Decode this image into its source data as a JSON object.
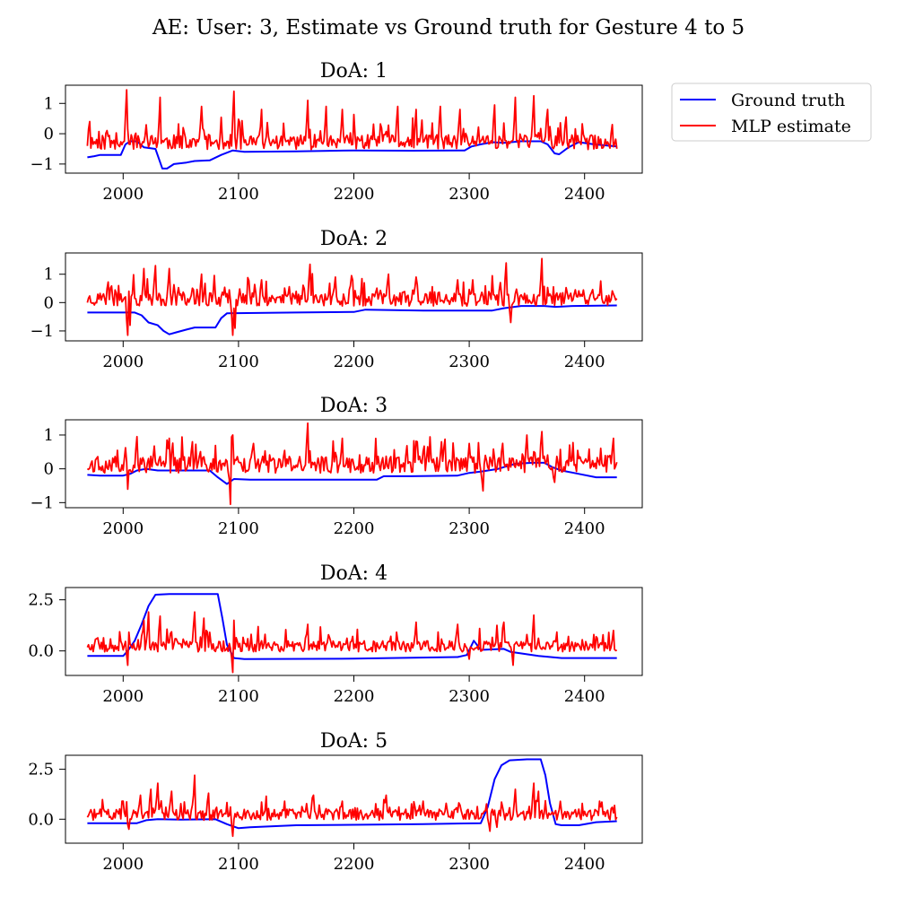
{
  "chart_data": {
    "type": "line",
    "title": "AE: User: 3, Estimate vs Ground truth for Gesture 4 to 5",
    "legend": {
      "placement": "upper-right-outside",
      "entries": [
        {
          "name": "Ground truth",
          "color": "#0000ff"
        },
        {
          "name": "MLP estimate",
          "color": "#ff0000"
        }
      ]
    },
    "xlim": [
      1950,
      2450
    ],
    "x_range": [
      1969,
      2428
    ],
    "xticks": [
      "2000",
      "2100",
      "2200",
      "2300",
      "2400"
    ],
    "grid": false,
    "subplots": [
      {
        "title": "DoA: 1",
        "ylim": [
          -1.3,
          1.6
        ],
        "yticks": [
          {
            "v": 1,
            "label": "1"
          },
          {
            "v": 0,
            "label": "0"
          },
          {
            "v": -1,
            "label": "−1"
          }
        ],
        "ground_truth": [
          [
            1969,
            -0.78
          ],
          [
            1975,
            -0.74
          ],
          [
            1980,
            -0.7
          ],
          [
            1998,
            -0.7
          ],
          [
            2002,
            -0.35
          ],
          [
            2006,
            -0.25
          ],
          [
            2012,
            -0.25
          ],
          [
            2018,
            -0.45
          ],
          [
            2028,
            -0.5
          ],
          [
            2034,
            -1.15
          ],
          [
            2038,
            -1.15
          ],
          [
            2044,
            -1.0
          ],
          [
            2055,
            -0.95
          ],
          [
            2062,
            -0.9
          ],
          [
            2075,
            -0.88
          ],
          [
            2085,
            -0.7
          ],
          [
            2095,
            -0.55
          ],
          [
            2105,
            -0.6
          ],
          [
            2150,
            -0.58
          ],
          [
            2200,
            -0.55
          ],
          [
            2250,
            -0.56
          ],
          [
            2296,
            -0.55
          ],
          [
            2302,
            -0.42
          ],
          [
            2310,
            -0.35
          ],
          [
            2320,
            -0.28
          ],
          [
            2330,
            -0.3
          ],
          [
            2345,
            -0.25
          ],
          [
            2362,
            -0.25
          ],
          [
            2368,
            -0.35
          ],
          [
            2374,
            -0.65
          ],
          [
            2378,
            -0.68
          ],
          [
            2386,
            -0.45
          ],
          [
            2395,
            -0.28
          ],
          [
            2408,
            -0.35
          ],
          [
            2428,
            -0.42
          ]
        ],
        "estimate": {
          "base": -0.3,
          "amp": 0.5,
          "peaks": [
            [
              2003,
              1.45
            ],
            [
              2012,
              1.05
            ],
            [
              2032,
              1.2
            ],
            [
              2068,
              0.9
            ],
            [
              2096,
              1.4
            ],
            [
              2101,
              1.25
            ],
            [
              2120,
              0.8
            ],
            [
              2160,
              1.1
            ],
            [
              2176,
              0.9
            ],
            [
              2190,
              0.8
            ],
            [
              2238,
              0.9
            ],
            [
              2254,
              0.8
            ],
            [
              2275,
              0.9
            ],
            [
              2292,
              0.8
            ],
            [
              2322,
              0.95
            ],
            [
              2340,
              1.2
            ],
            [
              2356,
              1.25
            ],
            [
              2368,
              0.8
            ],
            [
              2384,
              0.55
            ],
            [
              2424,
              0.3
            ]
          ],
          "dips": [
            [
              2012,
              -0.45
            ],
            [
              2102,
              -0.5
            ],
            [
              2300,
              -0.4
            ]
          ],
          "seed": 11
        }
      },
      {
        "title": "DoA: 2",
        "ylim": [
          -1.35,
          1.75
        ],
        "yticks": [
          {
            "v": 1,
            "label": "1"
          },
          {
            "v": 0,
            "label": "0"
          },
          {
            "v": -1,
            "label": "−1"
          }
        ],
        "ground_truth": [
          [
            1969,
            -0.35
          ],
          [
            2010,
            -0.35
          ],
          [
            2016,
            -0.45
          ],
          [
            2022,
            -0.7
          ],
          [
            2030,
            -0.8
          ],
          [
            2035,
            -1.0
          ],
          [
            2040,
            -1.12
          ],
          [
            2046,
            -1.05
          ],
          [
            2055,
            -0.95
          ],
          [
            2062,
            -0.88
          ],
          [
            2080,
            -0.88
          ],
          [
            2085,
            -0.55
          ],
          [
            2090,
            -0.38
          ],
          [
            2150,
            -0.35
          ],
          [
            2200,
            -0.33
          ],
          [
            2210,
            -0.25
          ],
          [
            2260,
            -0.28
          ],
          [
            2320,
            -0.28
          ],
          [
            2330,
            -0.2
          ],
          [
            2345,
            -0.12
          ],
          [
            2365,
            -0.12
          ],
          [
            2375,
            -0.15
          ],
          [
            2390,
            -0.12
          ],
          [
            2428,
            -0.1
          ]
        ],
        "estimate": {
          "base": 0.1,
          "amp": 0.5,
          "peaks": [
            [
              2005,
              1.6
            ],
            [
              2018,
              1.2
            ],
            [
              2028,
              1.3
            ],
            [
              2040,
              1.2
            ],
            [
              2068,
              1.0
            ],
            [
              2097,
              1.1
            ],
            [
              2120,
              0.8
            ],
            [
              2162,
              1.35
            ],
            [
              2184,
              0.9
            ],
            [
              2198,
              0.95
            ],
            [
              2230,
              1.0
            ],
            [
              2254,
              0.9
            ],
            [
              2290,
              0.8
            ],
            [
              2303,
              0.8
            ],
            [
              2332,
              1.4
            ],
            [
              2363,
              1.55
            ],
            [
              2394,
              0.2
            ],
            [
              2425,
              0.3
            ]
          ],
          "dips": [
            [
              2004,
              -1.15
            ],
            [
              2006,
              -0.8
            ],
            [
              2095,
              -1.15
            ],
            [
              2097,
              -0.9
            ],
            [
              2336,
              -0.7
            ]
          ],
          "seed": 23
        }
      },
      {
        "title": "DoA: 3",
        "ylim": [
          -1.15,
          1.45
        ],
        "yticks": [
          {
            "v": 1,
            "label": "1"
          },
          {
            "v": 0,
            "label": "0"
          },
          {
            "v": -1,
            "label": "−1"
          }
        ],
        "ground_truth": [
          [
            1969,
            -0.18
          ],
          [
            1980,
            -0.2
          ],
          [
            2000,
            -0.2
          ],
          [
            2006,
            -0.15
          ],
          [
            2012,
            -0.05
          ],
          [
            2020,
            0.0
          ],
          [
            2030,
            -0.05
          ],
          [
            2050,
            -0.05
          ],
          [
            2075,
            -0.05
          ],
          [
            2082,
            -0.25
          ],
          [
            2090,
            -0.45
          ],
          [
            2096,
            -0.3
          ],
          [
            2110,
            -0.32
          ],
          [
            2150,
            -0.32
          ],
          [
            2220,
            -0.32
          ],
          [
            2226,
            -0.22
          ],
          [
            2250,
            -0.22
          ],
          [
            2290,
            -0.2
          ],
          [
            2300,
            -0.12
          ],
          [
            2310,
            -0.08
          ],
          [
            2325,
            0.0
          ],
          [
            2340,
            0.15
          ],
          [
            2355,
            0.18
          ],
          [
            2365,
            0.18
          ],
          [
            2372,
            0.05
          ],
          [
            2380,
            -0.05
          ],
          [
            2395,
            -0.15
          ],
          [
            2410,
            -0.25
          ],
          [
            2428,
            -0.25
          ]
        ],
        "estimate": {
          "base": 0.1,
          "amp": 0.5,
          "peaks": [
            [
              2003,
              1.0
            ],
            [
              2012,
              0.95
            ],
            [
              2040,
              0.9
            ],
            [
              2060,
              0.8
            ],
            [
              2095,
              1.0
            ],
            [
              2113,
              0.75
            ],
            [
              2160,
              1.35
            ],
            [
              2190,
              0.9
            ],
            [
              2255,
              0.8
            ],
            [
              2276,
              0.8
            ],
            [
              2300,
              0.75
            ],
            [
              2350,
              1.0
            ],
            [
              2363,
              1.1
            ],
            [
              2425,
              0.9
            ]
          ],
          "dips": [
            [
              2004,
              -0.6
            ],
            [
              2093,
              -1.05
            ],
            [
              2312,
              -0.65
            ],
            [
              2374,
              -0.4
            ]
          ],
          "seed": 37
        }
      },
      {
        "title": "DoA: 4",
        "ylim": [
          -1.2,
          3.1
        ],
        "yticks": [
          {
            "v": 2.5,
            "label": "2.5"
          },
          {
            "v": 0,
            "label": "0.0"
          }
        ],
        "ground_truth": [
          [
            1969,
            -0.25
          ],
          [
            2000,
            -0.25
          ],
          [
            2004,
            0.0
          ],
          [
            2010,
            0.5
          ],
          [
            2016,
            1.3
          ],
          [
            2022,
            2.2
          ],
          [
            2028,
            2.75
          ],
          [
            2040,
            2.78
          ],
          [
            2082,
            2.78
          ],
          [
            2086,
            1.6
          ],
          [
            2090,
            0.3
          ],
          [
            2096,
            -0.35
          ],
          [
            2105,
            -0.4
          ],
          [
            2200,
            -0.38
          ],
          [
            2290,
            -0.3
          ],
          [
            2298,
            -0.2
          ],
          [
            2304,
            0.5
          ],
          [
            2310,
            0.05
          ],
          [
            2330,
            0.1
          ],
          [
            2336,
            -0.05
          ],
          [
            2360,
            -0.25
          ],
          [
            2380,
            -0.35
          ],
          [
            2428,
            -0.35
          ]
        ],
        "estimate": {
          "base": 0.2,
          "amp": 0.55,
          "peaks": [
            [
              2018,
              1.5
            ],
            [
              2022,
              1.9
            ],
            [
              2032,
              1.7
            ],
            [
              2062,
              1.9
            ],
            [
              2070,
              1.6
            ],
            [
              2096,
              1.5
            ],
            [
              2160,
              1.3
            ],
            [
              2254,
              1.4
            ],
            [
              2290,
              1.3
            ],
            [
              2330,
              1.4
            ],
            [
              2356,
              1.75
            ],
            [
              2425,
              1.0
            ]
          ],
          "dips": [
            [
              2004,
              -0.7
            ],
            [
              2095,
              -1.05
            ],
            [
              2300,
              -0.4
            ],
            [
              2338,
              -0.7
            ]
          ],
          "seed": 53
        }
      },
      {
        "title": "DoA: 5",
        "ylim": [
          -1.2,
          3.2
        ],
        "yticks": [
          {
            "v": 2.5,
            "label": "2.5"
          },
          {
            "v": 0,
            "label": "0.0"
          }
        ],
        "ground_truth": [
          [
            1969,
            -0.2
          ],
          [
            2000,
            -0.2
          ],
          [
            2012,
            -0.2
          ],
          [
            2020,
            -0.05
          ],
          [
            2030,
            0.0
          ],
          [
            2050,
            -0.02
          ],
          [
            2080,
            0.0
          ],
          [
            2090,
            -0.25
          ],
          [
            2100,
            -0.45
          ],
          [
            2110,
            -0.4
          ],
          [
            2150,
            -0.3
          ],
          [
            2200,
            -0.28
          ],
          [
            2260,
            -0.25
          ],
          [
            2310,
            -0.2
          ],
          [
            2316,
            0.6
          ],
          [
            2322,
            2.0
          ],
          [
            2328,
            2.7
          ],
          [
            2335,
            2.95
          ],
          [
            2350,
            3.0
          ],
          [
            2362,
            3.0
          ],
          [
            2366,
            2.2
          ],
          [
            2370,
            0.8
          ],
          [
            2375,
            -0.25
          ],
          [
            2380,
            -0.3
          ],
          [
            2395,
            -0.3
          ],
          [
            2410,
            -0.15
          ],
          [
            2428,
            -0.1
          ]
        ],
        "estimate": {
          "base": 0.2,
          "amp": 0.55,
          "peaks": [
            [
              2000,
              0.9
            ],
            [
              2015,
              1.2
            ],
            [
              2024,
              1.5
            ],
            [
              2030,
              1.8
            ],
            [
              2042,
              1.4
            ],
            [
              2062,
              2.2
            ],
            [
              2074,
              1.3
            ],
            [
              2140,
              0.9
            ],
            [
              2165,
              1.2
            ],
            [
              2190,
              0.9
            ],
            [
              2228,
              1.2
            ],
            [
              2260,
              0.9
            ],
            [
              2280,
              0.8
            ],
            [
              2340,
              1.5
            ],
            [
              2356,
              1.8
            ],
            [
              2360,
              1.4
            ],
            [
              2395,
              0.5
            ],
            [
              2424,
              0.6
            ]
          ],
          "dips": [
            [
              2005,
              -0.5
            ],
            [
              2095,
              -0.85
            ],
            [
              2318,
              -0.6
            ],
            [
              2324,
              -0.4
            ]
          ],
          "seed": 71
        }
      }
    ]
  }
}
